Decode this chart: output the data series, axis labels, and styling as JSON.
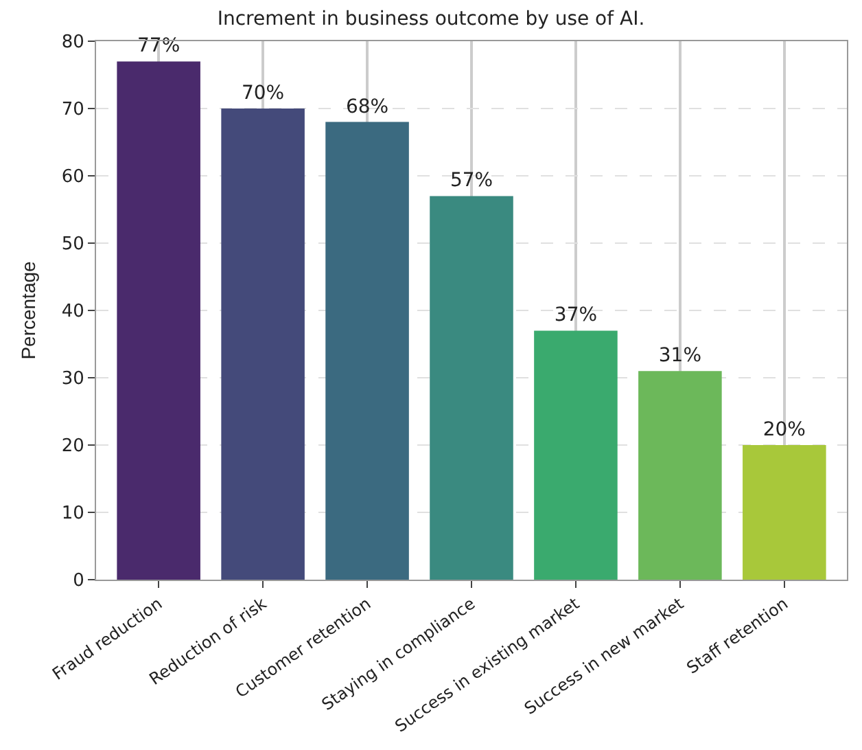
{
  "chart_data": {
    "type": "bar",
    "title": "Increment in business outcome by use of AI.",
    "ylabel": "Percentage",
    "categories": [
      "Fraud reduction",
      "Reduction of risk",
      "Customer retention",
      "Staying in compliance",
      "Success in existing market",
      "Success in new market",
      "Staff retention"
    ],
    "values": [
      77,
      70,
      68,
      57,
      37,
      31,
      20
    ],
    "value_labels": [
      "77%",
      "70%",
      "68%",
      "57%",
      "37%",
      "31%",
      "20%"
    ],
    "colors": [
      "#4a2a6c",
      "#444a7a",
      "#3b6a80",
      "#3a8a80",
      "#3aaa6e",
      "#6cb85a",
      "#a8c83a"
    ],
    "ylim": [
      0,
      80
    ],
    "yticks": [
      0,
      10,
      20,
      30,
      40,
      50,
      60,
      70,
      80
    ],
    "grid": true,
    "legend": false
  }
}
